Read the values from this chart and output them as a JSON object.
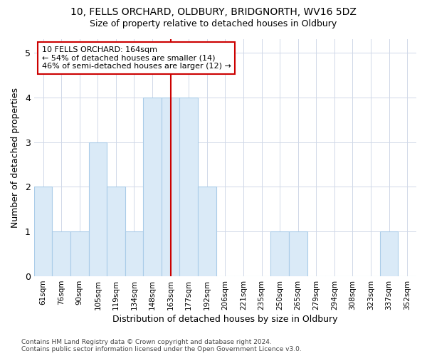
{
  "title1": "10, FELLS ORCHARD, OLDBURY, BRIDGNORTH, WV16 5DZ",
  "title2": "Size of property relative to detached houses in Oldbury",
  "xlabel": "Distribution of detached houses by size in Oldbury",
  "ylabel": "Number of detached properties",
  "footnote": "Contains HM Land Registry data © Crown copyright and database right 2024.\nContains public sector information licensed under the Open Government Licence v3.0.",
  "categories": [
    "61sqm",
    "76sqm",
    "90sqm",
    "105sqm",
    "119sqm",
    "134sqm",
    "148sqm",
    "163sqm",
    "177sqm",
    "192sqm",
    "206sqm",
    "221sqm",
    "235sqm",
    "250sqm",
    "265sqm",
    "279sqm",
    "294sqm",
    "308sqm",
    "323sqm",
    "337sqm",
    "352sqm"
  ],
  "values": [
    2,
    1,
    1,
    3,
    2,
    1,
    4,
    4,
    4,
    2,
    0,
    0,
    0,
    1,
    1,
    0,
    0,
    0,
    0,
    1,
    0
  ],
  "bar_color": "#daeaf7",
  "bar_edge_color": "#aacce8",
  "highlight_index": 7,
  "highlight_line_color": "#cc0000",
  "annotation_text": "10 FELLS ORCHARD: 164sqm\n← 54% of detached houses are smaller (14)\n46% of semi-detached houses are larger (12) →",
  "annotation_box_color": "#ffffff",
  "annotation_box_edge_color": "#cc0000",
  "ylim": [
    0,
    5.3
  ],
  "yticks": [
    0,
    1,
    2,
    3,
    4,
    5
  ],
  "background_color": "#ffffff",
  "grid_color": "#d0d8e8"
}
